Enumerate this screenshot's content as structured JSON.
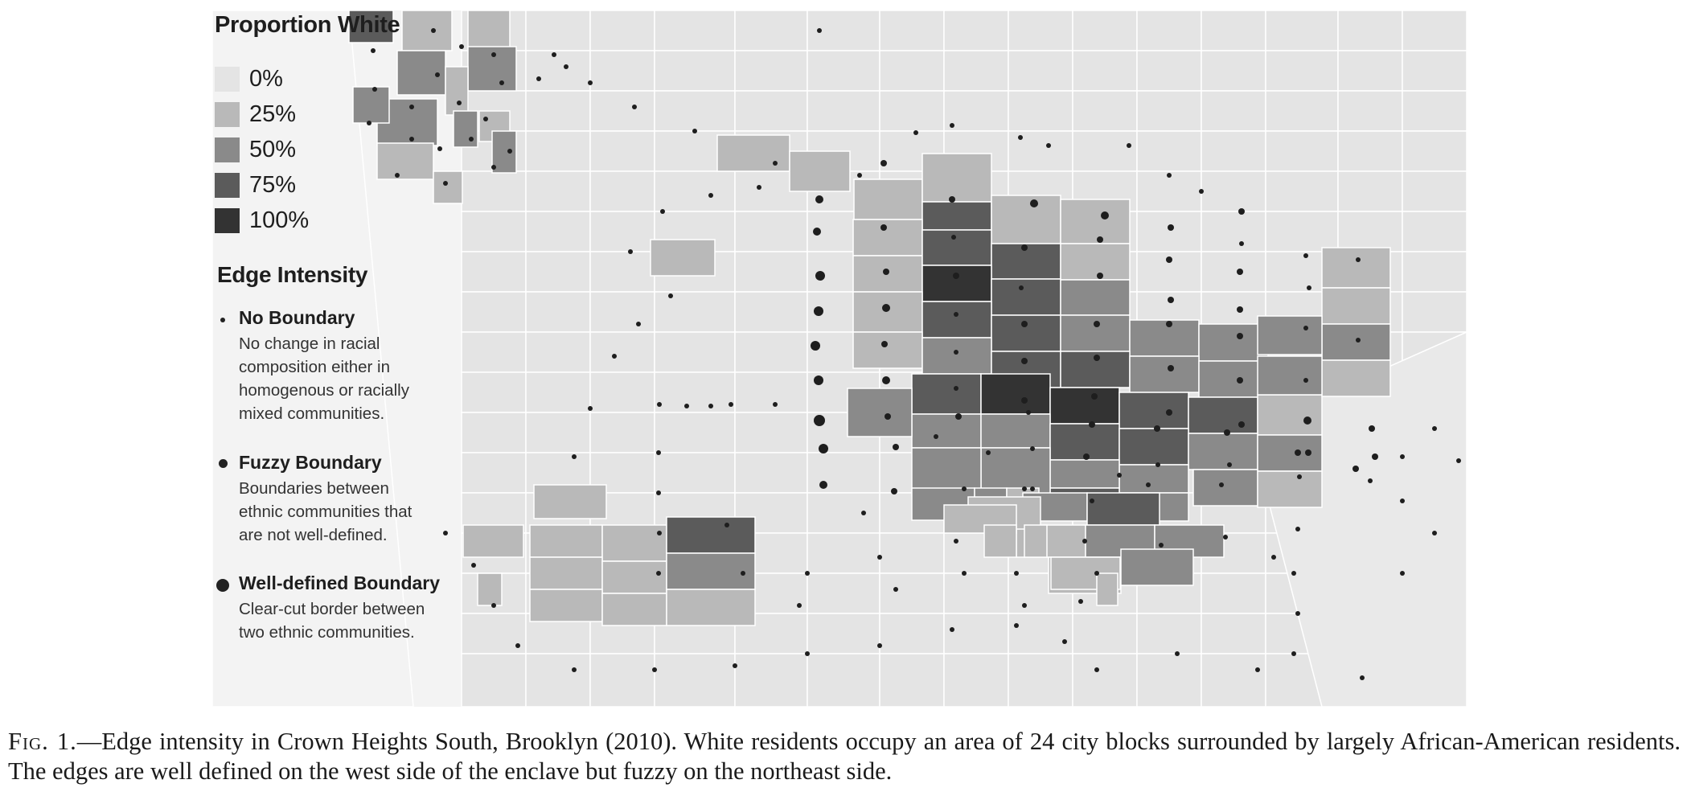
{
  "legend": {
    "proportion_title": "Proportion White",
    "proportion_items": [
      {
        "label": "0%",
        "color": "#e4e4e4"
      },
      {
        "label": "25%",
        "color": "#b9b9b9"
      },
      {
        "label": "50%",
        "color": "#8a8a8a"
      },
      {
        "label": "75%",
        "color": "#5b5b5b"
      },
      {
        "label": "100%",
        "color": "#333333"
      }
    ],
    "edge_title": "Edge Intensity",
    "edge_items": [
      {
        "title": "No Boundary",
        "desc": [
          "No change in racial",
          "composition either in",
          "homogenous or racially",
          "mixed communities."
        ],
        "dot": "small"
      },
      {
        "title": "Fuzzy Boundary",
        "desc": [
          "Boundaries between",
          "ethnic communities that",
          "are not well-defined."
        ],
        "dot": "medium"
      },
      {
        "title": "Well-defined Boundary",
        "desc": [
          "Clear-cut border between",
          "two ethnic communities."
        ],
        "dot": "large"
      }
    ]
  },
  "caption": {
    "label": "Fig. 1.",
    "text": "—Edge intensity in Crown Heights South, Brooklyn (2010). White residents occupy an area of 24 city blocks surrounded by largely African-American residents. The edges are well defined on the west side of the enclave but fuzzy on the northeast side."
  },
  "colors": {
    "background": "#f3f3f3",
    "block_0": "#e4e4e4",
    "block_25": "#b9b9b9",
    "block_50": "#8a8a8a",
    "block_75": "#5b5b5b",
    "block_100": "#333333",
    "dot": "#1e1e1e"
  }
}
